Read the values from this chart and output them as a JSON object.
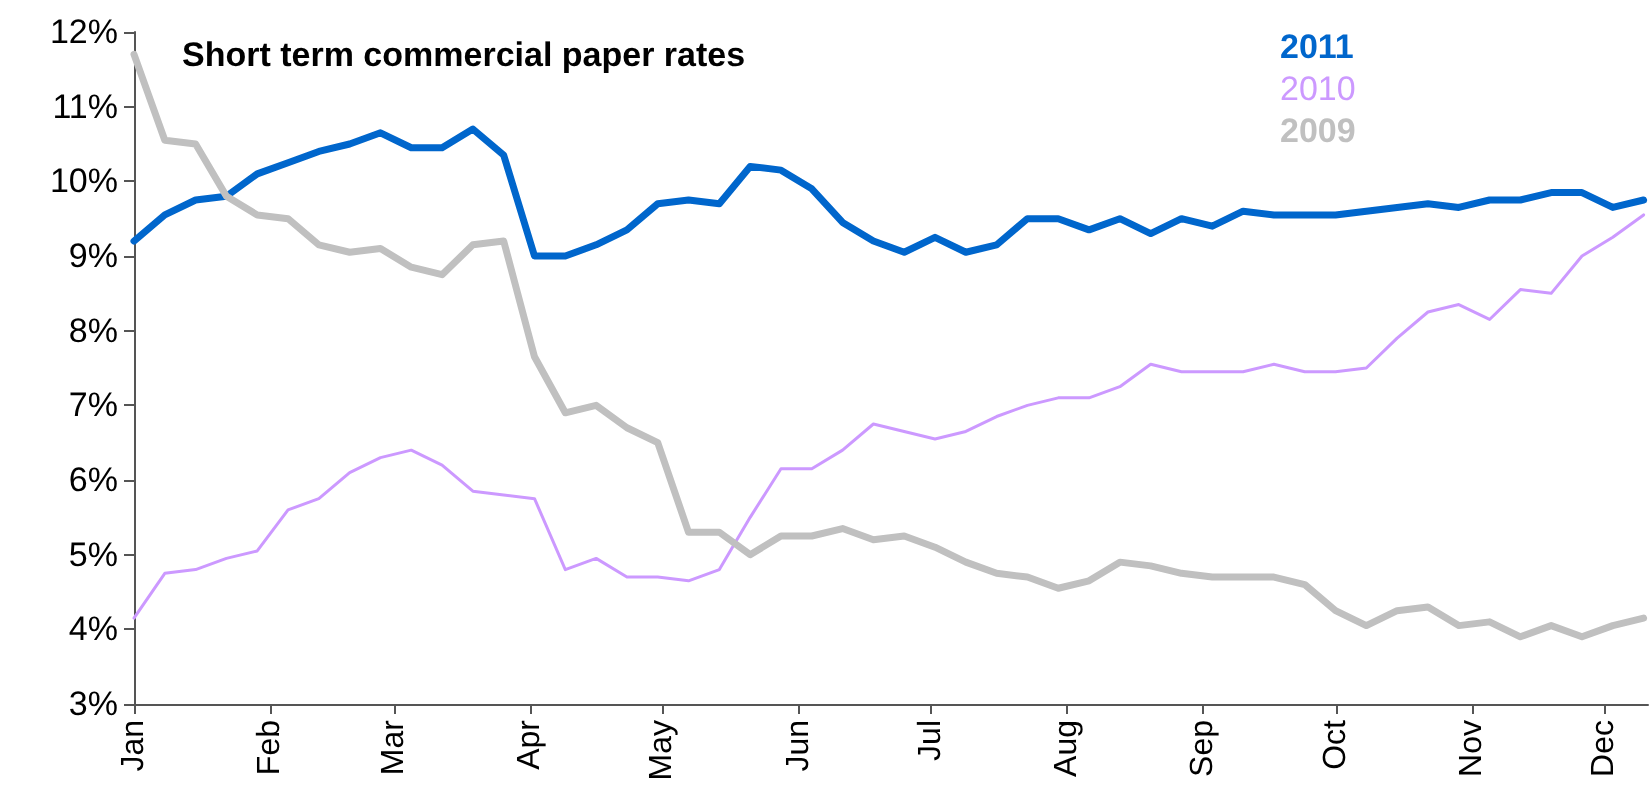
{
  "chart_data": {
    "type": "line",
    "title": "Short term commercial paper rates",
    "x": [
      "--01-01",
      "--01-08",
      "--01-15",
      "--01-22",
      "--01-29",
      "--02-05",
      "--02-12",
      "--02-19",
      "--02-26",
      "--03-05",
      "--03-12",
      "--03-19",
      "--03-26",
      "--04-02",
      "--04-09",
      "--04-16",
      "--04-23",
      "--04-30",
      "--05-07",
      "--05-14",
      "--05-21",
      "--05-28",
      "--06-04",
      "--06-11",
      "--06-18",
      "--06-25",
      "--07-02",
      "--07-09",
      "--07-16",
      "--07-23",
      "--07-30",
      "--08-06",
      "--08-13",
      "--08-20",
      "--08-27",
      "--09-03",
      "--09-10",
      "--09-17",
      "--09-24",
      "--10-01",
      "--10-08",
      "--10-15",
      "--10-22",
      "--10-29",
      "--11-05",
      "--11-12",
      "--11-19",
      "--11-26",
      "--12-03",
      "--12-10"
    ],
    "series": [
      {
        "name": "2011",
        "color": "#0066cc",
        "values": [
          9.2,
          9.55,
          9.75,
          9.8,
          10.1,
          10.25,
          10.4,
          10.5,
          10.65,
          10.45,
          10.45,
          10.7,
          10.35,
          9.0,
          9.0,
          9.15,
          9.35,
          9.7,
          9.75,
          9.7,
          10.2,
          10.15,
          9.9,
          9.45,
          9.2,
          9.05,
          9.25,
          9.05,
          9.15,
          9.5,
          9.5,
          9.35,
          9.5,
          9.3,
          9.5,
          9.4,
          9.6,
          9.55,
          9.55,
          9.55,
          9.6,
          9.65,
          9.7,
          9.65,
          9.75,
          9.75,
          9.85,
          9.85,
          9.65,
          9.75
        ]
      },
      {
        "name": "2010",
        "color": "#cc99ff",
        "values": [
          4.15,
          4.75,
          4.8,
          4.95,
          5.05,
          5.6,
          5.75,
          6.1,
          6.3,
          6.4,
          6.2,
          5.85,
          5.8,
          5.75,
          4.8,
          4.95,
          4.7,
          4.7,
          4.65,
          4.8,
          5.5,
          6.15,
          6.15,
          6.4,
          6.75,
          6.65,
          6.55,
          6.65,
          6.85,
          7.0,
          7.1,
          7.1,
          7.25,
          7.55,
          7.45,
          7.45,
          7.45,
          7.55,
          7.45,
          7.45,
          7.5,
          7.9,
          8.25,
          8.35,
          8.15,
          8.55,
          8.5,
          9.0,
          9.25,
          9.55
        ]
      },
      {
        "name": "2009",
        "color": "#c0c0c0",
        "values": [
          11.7,
          10.55,
          10.5,
          9.8,
          9.55,
          9.5,
          9.15,
          9.05,
          9.1,
          8.85,
          8.75,
          9.15,
          9.2,
          7.65,
          6.9,
          7.0,
          6.7,
          6.5,
          5.3,
          5.3,
          5.0,
          5.25,
          5.25,
          5.35,
          5.2,
          5.25,
          5.1,
          4.9,
          4.75,
          4.7,
          4.55,
          4.65,
          4.9,
          4.85,
          4.75,
          4.7,
          4.7,
          4.7,
          4.6,
          4.25,
          4.05,
          4.25,
          4.3,
          4.05,
          4.1,
          3.9,
          4.05,
          3.9,
          4.05,
          4.15
        ]
      }
    ],
    "xlim": [
      "--01-01",
      "--12-11"
    ],
    "xticks": [
      {
        "value": "--01-01",
        "label": "Jan"
      },
      {
        "value": "--02-01",
        "label": "Feb"
      },
      {
        "value": "--03-01",
        "label": "Mar"
      },
      {
        "value": "--04-01",
        "label": "Apr"
      },
      {
        "value": "--05-01",
        "label": "May"
      },
      {
        "value": "--06-01",
        "label": "Jun"
      },
      {
        "value": "--07-01",
        "label": "Jul"
      },
      {
        "value": "--08-01",
        "label": "Aug"
      },
      {
        "value": "--09-01",
        "label": "Sep"
      },
      {
        "value": "--10-01",
        "label": "Oct"
      },
      {
        "value": "--11-01",
        "label": "Nov"
      },
      {
        "value": "--12-01",
        "label": "Dec"
      }
    ],
    "ylim": [
      3,
      12
    ],
    "yticks": [
      {
        "value": 3,
        "label": "3%"
      },
      {
        "value": 4,
        "label": "4%"
      },
      {
        "value": 5,
        "label": "5%"
      },
      {
        "value": 6,
        "label": "6%"
      },
      {
        "value": 7,
        "label": "7%"
      },
      {
        "value": 8,
        "label": "8%"
      },
      {
        "value": 9,
        "label": "9%"
      },
      {
        "value": 10,
        "label": "10%"
      },
      {
        "value": 11,
        "label": "11%"
      },
      {
        "value": 12,
        "label": "12%"
      }
    ],
    "grid": false,
    "legend": "top right",
    "marker": "none",
    "line_style": "solid"
  }
}
